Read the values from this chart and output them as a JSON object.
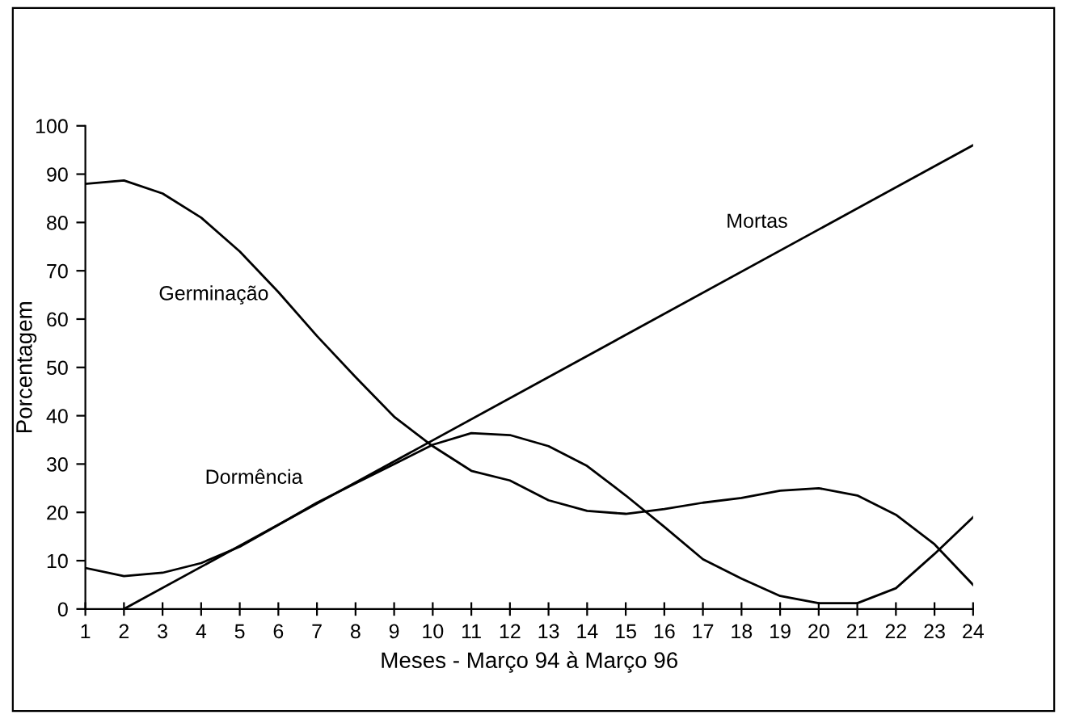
{
  "chart_data": {
    "type": "line",
    "xlabel": "Meses - Março 94 à Março 96",
    "ylabel": "Porcentagem",
    "x": [
      1,
      2,
      3,
      4,
      5,
      6,
      7,
      8,
      9,
      10,
      11,
      12,
      13,
      14,
      15,
      16,
      17,
      18,
      19,
      20,
      21,
      22,
      23,
      24
    ],
    "series": [
      {
        "name": "Germinação",
        "color": "#000000",
        "values": [
          88,
          88.7,
          86,
          81,
          74,
          65.6,
          56.5,
          48,
          39.8,
          33.7,
          28.6,
          26.6,
          22.5,
          20.3,
          19.7,
          20.7,
          22,
          23,
          24.5,
          25,
          23.5,
          19.5,
          13.4,
          5
        ]
      },
      {
        "name": "Dormência",
        "color": "#000000",
        "values": [
          8.5,
          6.8,
          7.5,
          9.5,
          12.9,
          17.4,
          22,
          26,
          30,
          34,
          36.4,
          36,
          33.7,
          29.6,
          23.5,
          17,
          10.3,
          6.3,
          2.7,
          1.2,
          1.2,
          4.3,
          11.4,
          19
        ]
      },
      {
        "name": "Mortas",
        "color": "#000000",
        "x": [
          2,
          24
        ],
        "values": [
          0,
          96
        ]
      }
    ],
    "xlim": [
      1,
      24
    ],
    "xticks": [
      1,
      2,
      3,
      4,
      5,
      6,
      7,
      8,
      9,
      10,
      11,
      12,
      13,
      14,
      15,
      16,
      17,
      18,
      19,
      20,
      21,
      22,
      23,
      24
    ],
    "ylim": [
      0,
      100
    ],
    "yticks": [
      0,
      10,
      20,
      30,
      40,
      50,
      60,
      70,
      80,
      90,
      100
    ],
    "grid": false,
    "legend": false,
    "marker": "none",
    "line_style": "solid"
  }
}
